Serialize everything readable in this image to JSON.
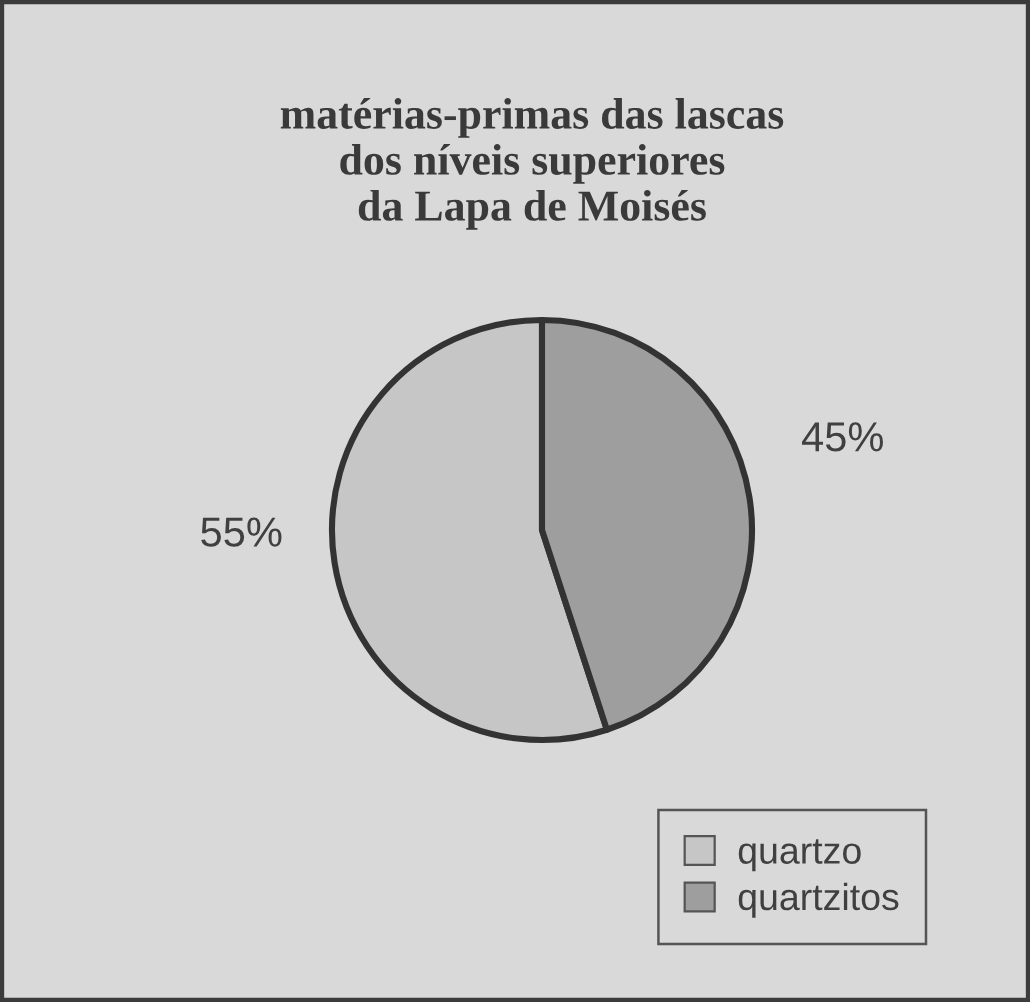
{
  "chart_data": {
    "type": "pie",
    "title": "matérias-primas das lascas\ndos níveis superiores\nda Lapa de Moisés",
    "categories": [
      "quartzo",
      "quartzitos"
    ],
    "values": [
      55,
      45
    ],
    "colors": [
      "#c6c6c6",
      "#9e9e9e"
    ],
    "value_labels": [
      "55%",
      "45%"
    ],
    "legend": "bottom right"
  }
}
